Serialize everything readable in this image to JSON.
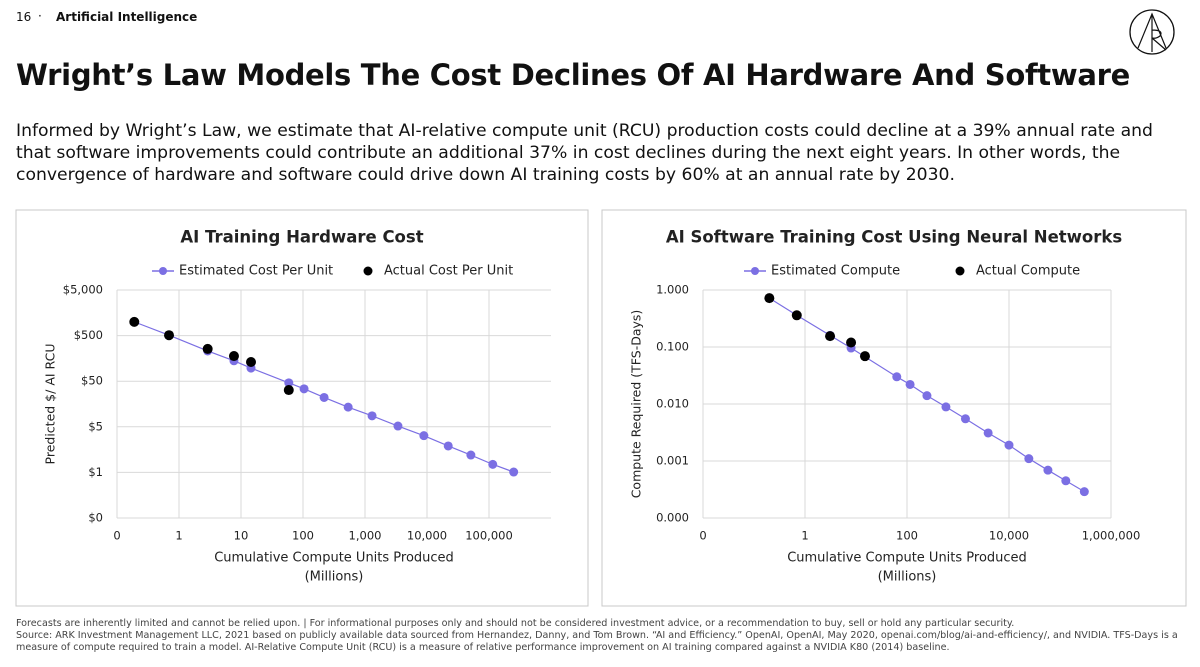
{
  "header": {
    "page": "16",
    "section": "Artificial Intelligence"
  },
  "title": "Wright’s Law Models The Cost Declines Of AI Hardware And Software",
  "subtitle": "Informed by Wright’s Law, we estimate that AI-relative compute unit (RCU) production costs could decline at a 39% annual rate and that software improvements could contribute an additional 37% in cost declines during the next eight years. In other words, the convergence of hardware and software could drive down AI training costs by 60% at an annual rate by 2030.",
  "footnotes": [
    "Forecasts are inherently limited and cannot be relied upon. | For informational purposes only and should not be considered investment advice, or a recommendation to buy, sell or hold any particular security.",
    "Source: ARK Investment Management LLC, 2021 based on publicly available data sourced from Hernandez, Danny, and Tom Brown. “AI and Efficiency.” OpenAI, OpenAI, May 2020, openai.com/blog/ai-and-efficiency/, and NVIDIA. TFS-Days is a measure of compute required to train a model. AI-Relative Compute Unit (RCU) is a measure of relative performance improvement on AI training compared against a NVIDIA K80 (2014) baseline."
  ],
  "chart_data": [
    {
      "type": "scatter",
      "title": "AI Training Hardware Cost",
      "xlabel": [
        "Cumulative Compute Units Produced",
        "(Millions)"
      ],
      "ylabel": "Predicted $/ AI RCU",
      "xscale": "log",
      "yscale": "log",
      "grid": true,
      "legend": "top",
      "xlim": [
        0.1,
        1000000
      ],
      "ylim": [
        0.05,
        5000
      ],
      "xticks": [
        {
          "value": 0.1,
          "label": "0"
        },
        1,
        10,
        100,
        {
          "value": 1000,
          "label": "1,000"
        },
        {
          "value": 10000,
          "label": "10,000"
        },
        {
          "value": 100000,
          "label": "100,000"
        }
      ],
      "yticks": [
        {
          "value": 0.05,
          "label": "$0"
        },
        {
          "value": 0.5,
          "label": "$1"
        },
        {
          "value": 5,
          "label": "$5"
        },
        {
          "value": 50,
          "label": "$50"
        },
        {
          "value": 500,
          "label": "$500"
        },
        {
          "value": 5000,
          "label": "$5,000"
        }
      ],
      "series": [
        {
          "name": "Estimated Cost Per Unit",
          "color": "#7b6fe3",
          "mode": "line",
          "x": [
            0.19,
            0.69,
            2.9,
            7.7,
            14.5,
            59,
            104,
            219,
            535,
            1300,
            3400,
            8900,
            22000,
            51000,
            115000,
            250000
          ],
          "values": [
            1000,
            510,
            230,
            140,
            97,
            46,
            34,
            22,
            13.5,
            8.7,
            5.2,
            3.2,
            1.9,
            1.2,
            0.75,
            0.51
          ]
        },
        {
          "name": "Actual Cost Per Unit",
          "color": "#000000",
          "mode": "markers",
          "x": [
            0.19,
            0.69,
            2.9,
            7.7,
            14.5,
            59
          ],
          "values": [
            1000,
            510,
            255,
            178,
            132,
            32
          ]
        }
      ]
    },
    {
      "type": "scatter",
      "title": "AI Software Training Cost Using Neural Networks",
      "xlabel": [
        "Cumulative Compute Units Produced",
        "(Millions)"
      ],
      "ylabel": "Compute Required (TFS-Days)",
      "xscale": "log",
      "yscale": "log",
      "grid": true,
      "legend": "top",
      "xlim": [
        0.01,
        1000000
      ],
      "ylim": [
        0.0001,
        1
      ],
      "xticks": [
        {
          "value": 0.01,
          "label": "0"
        },
        1,
        100,
        {
          "value": 10000,
          "label": "10,000"
        },
        {
          "value": 1000000,
          "label": "1,000,000"
        }
      ],
      "yticks": [
        {
          "value": 0.0001,
          "label": "0.000"
        },
        {
          "value": 0.001,
          "label": "0.001"
        },
        {
          "value": 0.01,
          "label": "0.010"
        },
        {
          "value": 0.1,
          "label": "0.100"
        },
        {
          "value": 1,
          "label": "1.000"
        }
      ],
      "series": [
        {
          "name": "Estimated Compute",
          "color": "#7b6fe3",
          "mode": "line",
          "x": [
            0.2,
            0.69,
            3.1,
            8,
            63,
            115,
            246,
            580,
            1400,
            3900,
            10000,
            24500,
            58000,
            130000,
            300000
          ],
          "values": [
            0.72,
            0.36,
            0.16,
            0.096,
            0.03,
            0.022,
            0.014,
            0.0089,
            0.0055,
            0.0031,
            0.0019,
            0.0011,
            0.00069,
            0.00045,
            0.00029
          ]
        },
        {
          "name": "Actual Compute",
          "color": "#000000",
          "mode": "markers",
          "x": [
            0.2,
            0.69,
            3.1,
            8,
            15
          ],
          "values": [
            0.72,
            0.36,
            0.155,
            0.12,
            0.069
          ]
        }
      ]
    }
  ]
}
